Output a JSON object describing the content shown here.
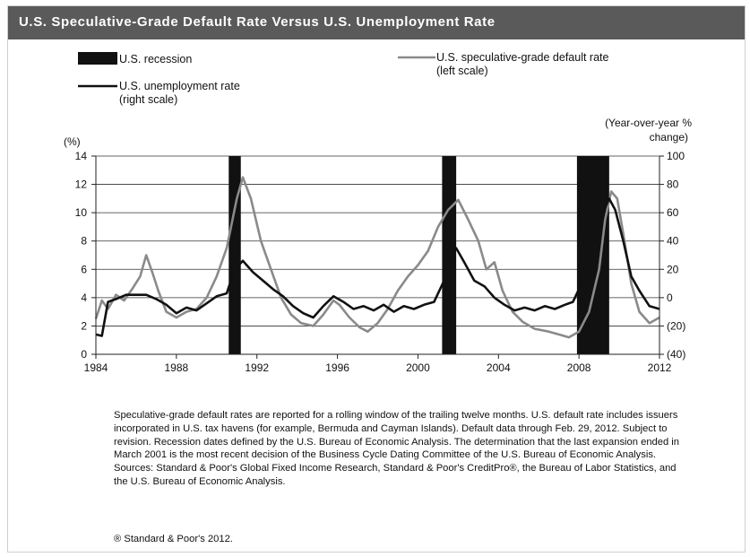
{
  "title": "U.S. Speculative-Grade Default Rate Versus U.S. Unemployment Rate",
  "notes": "Speculative-grade default rates are reported for a rolling window of the trailing twelve months. U.S. default rate includes issuers incorporated in U.S. tax havens (for example, Bermuda and Cayman Islands). Default data through Feb. 29, 2012. Subject to revision. Recession dates defined by the U.S. Bureau of Economic Analysis. The determination that the last expansion ended in March 2001 is the most recent decision of the Business Cycle Dating Committee of the U.S. Bureau of Economic Analysis. Sources: Standard & Poor's Global Fixed Income Research, Standard & Poor's CreditPro®, the Bureau of Labor Statistics, and the U.S. Bureau of Economic Analysis.",
  "copyright": "® Standard & Poor's 2012.",
  "chart_data": {
    "type": "line",
    "title": "U.S. Speculative-Grade Default Rate Versus U.S. Unemployment Rate",
    "y_left_label": "(%)",
    "y_right_label": [
      "(Year-over-year %",
      "change)"
    ],
    "x_range": [
      1984,
      2012
    ],
    "y_left_range": [
      0,
      14
    ],
    "y_right_range": [
      -40,
      100
    ],
    "x_ticks": [
      {
        "value": 1984,
        "label": "1984"
      },
      {
        "value": 1988,
        "label": "1988"
      },
      {
        "value": 1992,
        "label": "1992"
      },
      {
        "value": 1996,
        "label": "1996"
      },
      {
        "value": 2000,
        "label": "2000"
      },
      {
        "value": 2004,
        "label": "2004"
      },
      {
        "value": 2008,
        "label": "2008"
      },
      {
        "value": 2012,
        "label": "2012"
      }
    ],
    "y_left_ticks": [
      {
        "value": 0,
        "label": "0"
      },
      {
        "value": 2,
        "label": "2"
      },
      {
        "value": 4,
        "label": "4"
      },
      {
        "value": 6,
        "label": "6"
      },
      {
        "value": 8,
        "label": "8"
      },
      {
        "value": 10,
        "label": "10"
      },
      {
        "value": 12,
        "label": "12"
      },
      {
        "value": 14,
        "label": "14"
      }
    ],
    "y_right_ticks": [
      {
        "value": -40,
        "label": "(40)"
      },
      {
        "value": -20,
        "label": "(20)"
      },
      {
        "value": 0,
        "label": "0"
      },
      {
        "value": 20,
        "label": "20"
      },
      {
        "value": 40,
        "label": "40"
      },
      {
        "value": 60,
        "label": "60"
      },
      {
        "value": 80,
        "label": "80"
      },
      {
        "value": 100,
        "label": "100"
      }
    ],
    "grid": "horizontal",
    "legend": [
      {
        "key": "recession",
        "label": "U.S. recession",
        "color": "#111111"
      },
      {
        "key": "default",
        "label": "U.S. speculative-grade default rate",
        "label2": "(left scale)",
        "color": "#8a8a8a"
      },
      {
        "key": "unemployment",
        "label": "U.S. unemployment rate",
        "label2": "(right scale)",
        "color": "#111111"
      }
    ],
    "recessions": [
      [
        1990.6,
        1991.2
      ],
      [
        2001.2,
        2001.9
      ],
      [
        2007.9,
        2009.5
      ]
    ],
    "series": [
      {
        "key": "default",
        "name": "U.S. speculative-grade default rate",
        "axis": "left",
        "color": "#8a8a8a",
        "points": [
          [
            1984.0,
            2.5
          ],
          [
            1984.3,
            3.8
          ],
          [
            1984.6,
            3.2
          ],
          [
            1985.0,
            4.2
          ],
          [
            1985.4,
            3.8
          ],
          [
            1985.8,
            4.6
          ],
          [
            1986.2,
            5.5
          ],
          [
            1986.5,
            7.0
          ],
          [
            1986.8,
            5.8
          ],
          [
            1987.1,
            4.5
          ],
          [
            1987.5,
            3.0
          ],
          [
            1988.0,
            2.6
          ],
          [
            1988.5,
            3.0
          ],
          [
            1989.0,
            3.2
          ],
          [
            1989.5,
            4.0
          ],
          [
            1990.0,
            5.5
          ],
          [
            1990.5,
            7.5
          ],
          [
            1991.0,
            11.0
          ],
          [
            1991.3,
            12.5
          ],
          [
            1991.7,
            11.0
          ],
          [
            1992.2,
            8.0
          ],
          [
            1992.7,
            6.0
          ],
          [
            1993.2,
            4.0
          ],
          [
            1993.7,
            2.8
          ],
          [
            1994.2,
            2.2
          ],
          [
            1994.8,
            2.0
          ],
          [
            1995.3,
            2.8
          ],
          [
            1995.8,
            3.8
          ],
          [
            1996.1,
            3.5
          ],
          [
            1996.6,
            2.6
          ],
          [
            1997.1,
            1.9
          ],
          [
            1997.5,
            1.6
          ],
          [
            1998.0,
            2.2
          ],
          [
            1998.5,
            3.2
          ],
          [
            1999.0,
            4.5
          ],
          [
            1999.5,
            5.5
          ],
          [
            2000.0,
            6.3
          ],
          [
            2000.5,
            7.3
          ],
          [
            2001.0,
            9.0
          ],
          [
            2001.5,
            10.2
          ],
          [
            2002.0,
            10.9
          ],
          [
            2002.5,
            9.5
          ],
          [
            2003.0,
            8.0
          ],
          [
            2003.4,
            6.0
          ],
          [
            2003.8,
            6.5
          ],
          [
            2004.2,
            4.5
          ],
          [
            2004.7,
            3.0
          ],
          [
            2005.2,
            2.3
          ],
          [
            2005.8,
            1.8
          ],
          [
            2006.5,
            1.6
          ],
          [
            2007.0,
            1.4
          ],
          [
            2007.5,
            1.2
          ],
          [
            2008.0,
            1.6
          ],
          [
            2008.5,
            3.0
          ],
          [
            2009.0,
            6.0
          ],
          [
            2009.3,
            9.5
          ],
          [
            2009.6,
            11.5
          ],
          [
            2009.9,
            11.0
          ],
          [
            2010.2,
            8.5
          ],
          [
            2010.6,
            5.0
          ],
          [
            2011.0,
            3.0
          ],
          [
            2011.5,
            2.2
          ],
          [
            2012.0,
            2.6
          ]
        ]
      },
      {
        "key": "unemployment",
        "name": "U.S. unemployment rate",
        "axis": "right",
        "color": "#111111",
        "points": [
          [
            1984.0,
            -26
          ],
          [
            1984.3,
            -27
          ],
          [
            1984.6,
            -3
          ],
          [
            1985.0,
            -1
          ],
          [
            1985.5,
            2
          ],
          [
            1986.0,
            2
          ],
          [
            1986.5,
            2
          ],
          [
            1987.0,
            -1
          ],
          [
            1987.5,
            -5
          ],
          [
            1988.0,
            -11
          ],
          [
            1988.5,
            -7
          ],
          [
            1989.0,
            -9
          ],
          [
            1989.5,
            -4
          ],
          [
            1990.0,
            1
          ],
          [
            1990.5,
            3
          ],
          [
            1990.9,
            20
          ],
          [
            1991.3,
            26
          ],
          [
            1991.8,
            18
          ],
          [
            1992.3,
            12
          ],
          [
            1992.8,
            6
          ],
          [
            1993.3,
            1
          ],
          [
            1993.8,
            -6
          ],
          [
            1994.3,
            -11
          ],
          [
            1994.8,
            -14
          ],
          [
            1995.3,
            -6
          ],
          [
            1995.8,
            1
          ],
          [
            1996.3,
            -3
          ],
          [
            1996.8,
            -8
          ],
          [
            1997.3,
            -6
          ],
          [
            1997.8,
            -9
          ],
          [
            1998.3,
            -5
          ],
          [
            1998.8,
            -10
          ],
          [
            1999.3,
            -6
          ],
          [
            1999.8,
            -8
          ],
          [
            2000.3,
            -5
          ],
          [
            2000.8,
            -3
          ],
          [
            2001.3,
            12
          ],
          [
            2001.6,
            30
          ],
          [
            2001.9,
            35
          ],
          [
            2002.3,
            25
          ],
          [
            2002.8,
            12
          ],
          [
            2003.3,
            8
          ],
          [
            2003.8,
            0
          ],
          [
            2004.3,
            -5
          ],
          [
            2004.8,
            -9
          ],
          [
            2005.3,
            -7
          ],
          [
            2005.8,
            -9
          ],
          [
            2006.3,
            -6
          ],
          [
            2006.8,
            -8
          ],
          [
            2007.3,
            -5
          ],
          [
            2007.7,
            -3
          ],
          [
            2008.0,
            6
          ],
          [
            2008.4,
            25
          ],
          [
            2008.8,
            45
          ],
          [
            2009.2,
            60
          ],
          [
            2009.5,
            70
          ],
          [
            2009.8,
            62
          ],
          [
            2010.2,
            40
          ],
          [
            2010.6,
            15
          ],
          [
            2011.0,
            5
          ],
          [
            2011.5,
            -6
          ],
          [
            2012.0,
            -8
          ]
        ]
      }
    ]
  }
}
